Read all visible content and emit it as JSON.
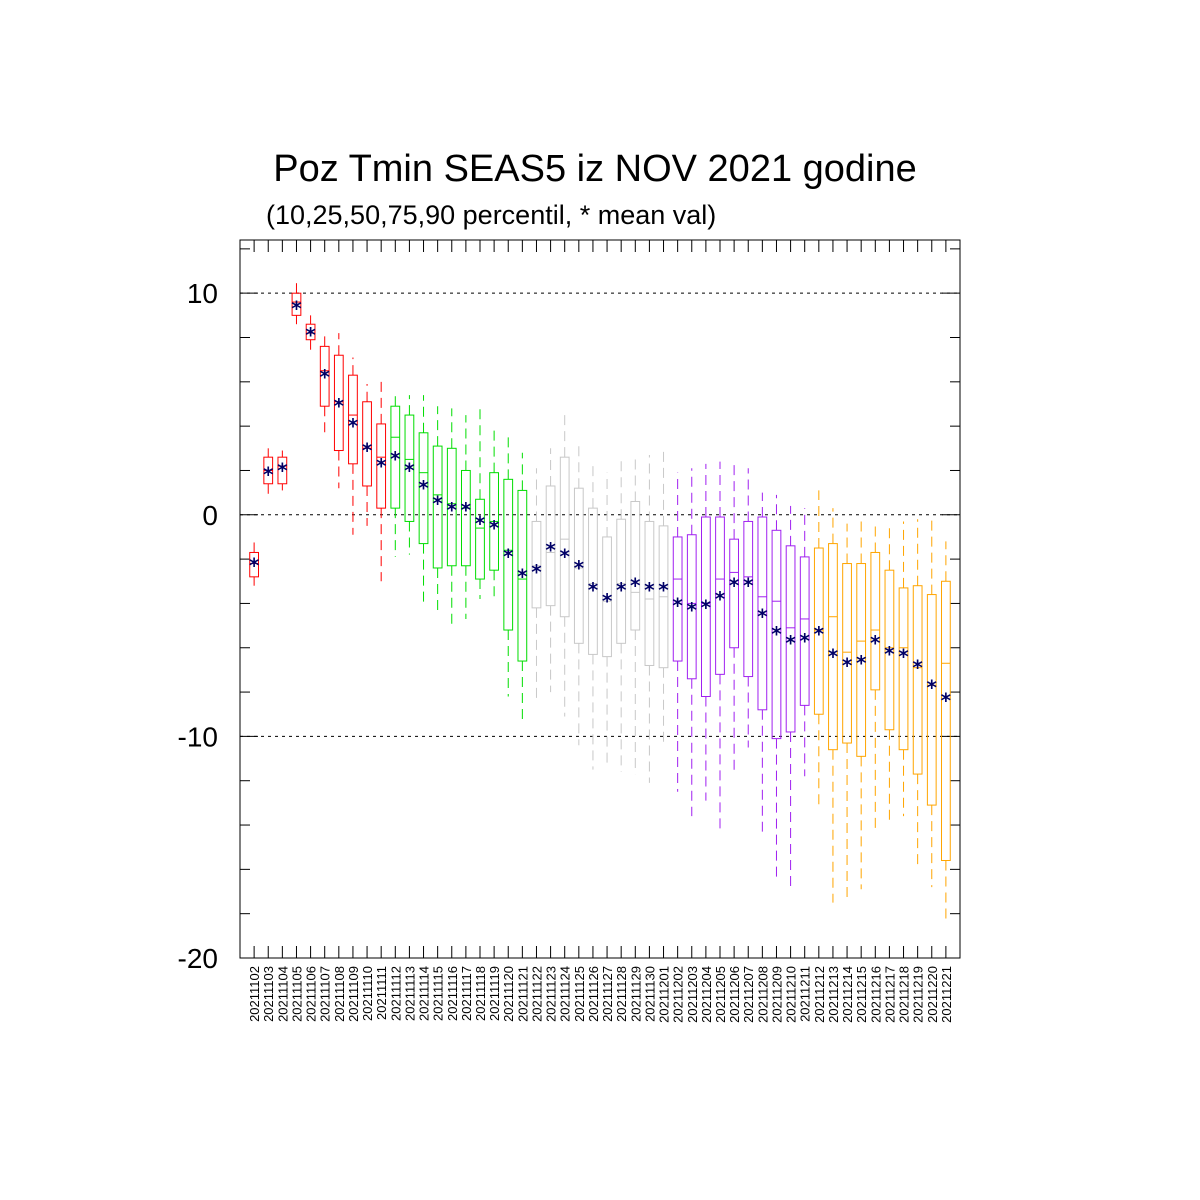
{
  "chart_data": {
    "type": "box",
    "title": "Poz Tmin SEAS5 iz NOV 2021 godine",
    "subtitle": "(10,25,50,75,90 percentil, * mean val)",
    "xlabel": "",
    "ylabel": "",
    "ylim": [
      -20,
      12.4
    ],
    "yticks": [
      10,
      0,
      -10,
      -20
    ],
    "reference_lines": [
      10,
      0,
      -10
    ],
    "grid": false,
    "colors": {
      "November": "#ff0000",
      "Week-green": "#00dd00",
      "Week-grey": "#c8c8c8",
      "Week-purple": "#a020f0",
      "Week-orange": "#ffa500",
      "mean_marker": "#000066"
    },
    "color_groups": [
      {
        "color": "#ff0000",
        "from": "20211102",
        "to": "20211111"
      },
      {
        "color": "#00dd00",
        "from": "20211112",
        "to": "20211121"
      },
      {
        "color": "#c8c8c8",
        "from": "20211122",
        "to": "20211201"
      },
      {
        "color": "#a020f0",
        "from": "20211202",
        "to": "20211211"
      },
      {
        "color": "#ffa500",
        "from": "20211212",
        "to": "20211221"
      }
    ],
    "categories": [
      "20211102",
      "20211103",
      "20211104",
      "20211105",
      "20211106",
      "20211107",
      "20211108",
      "20211109",
      "20211110",
      "20211111",
      "20211112",
      "20211113",
      "20211114",
      "20211115",
      "20211116",
      "20211117",
      "20211118",
      "20211119",
      "20211120",
      "20211121",
      "20211122",
      "20211123",
      "20211124",
      "20211125",
      "20211126",
      "20211127",
      "20211128",
      "20211129",
      "20211130",
      "20211201",
      "20211202",
      "20211203",
      "20211204",
      "20211205",
      "20211206",
      "20211207",
      "20211208",
      "20211209",
      "20211210",
      "20211211",
      "20211212",
      "20211213",
      "20211214",
      "20211215",
      "20211216",
      "20211217",
      "20211218",
      "20211219",
      "20211220",
      "20211221"
    ],
    "p10": [
      -3.2,
      0.9,
      1.1,
      8.6,
      7.4,
      3.6,
      1.2,
      -0.9,
      -0.5,
      -3.0,
      -1.9,
      -1.8,
      -4.1,
      -4.5,
      -5.0,
      -4.7,
      -3.8,
      -3.9,
      -8.2,
      -9.3,
      -8.5,
      -8.0,
      -9.1,
      -10.4,
      -11.5,
      -11.2,
      -11.6,
      -11.7,
      -12.1,
      -10.5,
      -12.5,
      -13.6,
      -12.9,
      -14.4,
      -11.6,
      -10.5,
      -14.3,
      -16.4,
      -16.8,
      -11.8,
      -13.1,
      -17.5,
      -17.5,
      -16.9,
      -14.4,
      -14.0,
      -13.6,
      -16.0,
      -16.8,
      -18.4
    ],
    "q25": [
      -2.8,
      1.4,
      1.4,
      9.0,
      7.9,
      4.9,
      2.9,
      2.3,
      1.3,
      0.3,
      0.3,
      -0.3,
      -1.3,
      -2.4,
      -2.3,
      -2.3,
      -2.9,
      -2.5,
      -5.2,
      -6.6,
      -4.2,
      -4.1,
      -4.6,
      -5.8,
      -6.3,
      -6.4,
      -5.8,
      -5.2,
      -6.8,
      -6.9,
      -6.6,
      -7.4,
      -8.2,
      -7.2,
      -6.0,
      -7.3,
      -8.8,
      -10.1,
      -9.8,
      -8.6,
      -9.0,
      -10.6,
      -10.3,
      -10.9,
      -7.9,
      -9.7,
      -10.6,
      -11.7,
      -13.1,
      -15.6
    ],
    "median": [
      -2.2,
      2.0,
      2.2,
      9.6,
      8.2,
      6.5,
      5.1,
      4.5,
      3.0,
      2.6,
      3.5,
      2.5,
      1.9,
      0.9,
      0.5,
      0.3,
      -0.6,
      -0.3,
      -1.6,
      -2.9,
      -2.3,
      -1.7,
      -1.1,
      -2.4,
      -3.1,
      -3.9,
      -3.1,
      -3.5,
      -3.8,
      -3.7,
      -2.9,
      -4.0,
      -4.0,
      -2.9,
      -2.6,
      -2.8,
      -3.7,
      -3.9,
      -5.1,
      -4.7,
      -5.2,
      -4.6,
      -6.2,
      -5.7,
      -5.2,
      -6.0,
      -6.0,
      -6.9,
      -7.7,
      -6.7
    ],
    "q75": [
      -1.7,
      2.6,
      2.6,
      10.0,
      8.6,
      7.6,
      7.2,
      6.3,
      5.1,
      4.1,
      4.9,
      4.5,
      3.7,
      3.1,
      3.0,
      2.0,
      0.7,
      1.9,
      1.6,
      1.1,
      -0.3,
      1.3,
      2.6,
      1.2,
      0.3,
      -1.0,
      -0.2,
      0.6,
      -0.3,
      -0.5,
      -1.0,
      -0.9,
      -0.1,
      -0.1,
      -1.1,
      -0.3,
      -0.1,
      -0.7,
      -1.4,
      -1.9,
      -1.5,
      -1.3,
      -2.2,
      -2.2,
      -1.7,
      -2.5,
      -3.3,
      -3.2,
      -3.6,
      -3.0
    ],
    "p90": [
      -1.2,
      3.0,
      2.9,
      10.5,
      9.0,
      8.2,
      8.2,
      7.1,
      5.9,
      6.0,
      5.6,
      5.4,
      5.4,
      4.9,
      4.8,
      4.5,
      5.0,
      3.8,
      3.7,
      2.8,
      2.1,
      3.0,
      4.7,
      3.1,
      2.2,
      1.9,
      2.6,
      2.6,
      2.7,
      3.0,
      1.9,
      2.1,
      2.3,
      2.4,
      2.3,
      2.1,
      1.0,
      0.9,
      0.4,
      0.3,
      1.1,
      0.3,
      -0.4,
      -0.3,
      -0.4,
      -0.6,
      -0.3,
      -0.2,
      -0.2,
      -1.2
    ],
    "mean": [
      -2.2,
      1.9,
      2.1,
      9.4,
      8.2,
      6.3,
      5.0,
      4.1,
      3.0,
      2.3,
      2.6,
      2.1,
      1.3,
      0.6,
      0.3,
      0.3,
      -0.3,
      -0.5,
      -1.8,
      -2.7,
      -2.5,
      -1.5,
      -1.8,
      -2.3,
      -3.3,
      -3.8,
      -3.3,
      -3.1,
      -3.3,
      -3.3,
      -4.0,
      -4.2,
      -4.1,
      -3.7,
      -3.1,
      -3.1,
      -4.5,
      -5.3,
      -5.7,
      -5.6,
      -5.3,
      -6.3,
      -6.7,
      -6.6,
      -5.7,
      -6.2,
      -6.3,
      -6.8,
      -7.7,
      -8.3
    ]
  }
}
